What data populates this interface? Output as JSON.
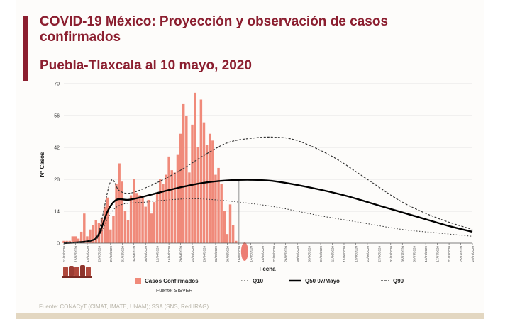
{
  "header": {
    "title": "COVID-19 México: Proyección y observación de casos confirmados",
    "subtitle": "Puebla-Tlaxcala al 10 mayo, 2020"
  },
  "footer": {
    "source": "Fuente: CONACyT (CIMAT, IMATE, UNAM); SSA (SNS, Red IRAG)"
  },
  "colors": {
    "brand": "#8b1e2f",
    "bars": "#f08a7a",
    "today_marker": "#e9675c",
    "q50_line": "#000000",
    "quantile_lines": "#333333",
    "grid": "#dddddd"
  },
  "icons": {
    "emblem": "institutional-emblem-icon"
  },
  "chart_data": {
    "type": "bar",
    "title": "",
    "xlabel": "Fecha",
    "ylabel": "Nº Casos",
    "ylim": [
      0,
      70
    ],
    "yticks": [
      0,
      14,
      28,
      42,
      56,
      70
    ],
    "grid": true,
    "legend_position": "bottom",
    "source_note": "Fuente: SISVER",
    "x_tick_labels": [
      "11/03/2020",
      "15/03/2020",
      "19/03/2020",
      "23/03/2020",
      "27/03/2020",
      "31/03/2020",
      "04/04/2020",
      "08/04/2020",
      "12/04/2020",
      "16/04/2020",
      "20/04/2020",
      "24/04/2020",
      "28/04/2020",
      "02/05/2020",
      "06/05/2020",
      "10/05/2020",
      "14/05/2020",
      "18/05/2020",
      "22/05/2020",
      "26/05/2020",
      "30/05/2020",
      "03/06/2020",
      "07/06/2020",
      "11/06/2020",
      "15/06/2020",
      "19/06/2020",
      "23/06/2020",
      "27/06/2020",
      "01/07/2020",
      "05/07/2020",
      "09/07/2020",
      "13/07/2020",
      "17/07/2020",
      "21/07/2020",
      "25/07/2020",
      "29/07/2020"
    ],
    "bars": {
      "name": "Casos Confirmados",
      "start_date": "11/03/2020",
      "values": [
        1,
        1,
        1,
        3,
        3,
        2,
        5,
        13,
        3,
        6,
        8,
        10,
        9,
        11,
        16,
        20,
        6,
        12,
        26,
        35,
        27,
        14,
        10,
        21,
        28,
        22,
        21,
        20,
        16,
        19,
        13,
        18,
        22,
        28,
        26,
        30,
        38,
        32,
        31,
        39,
        48,
        61,
        56,
        31,
        52,
        66,
        42,
        63,
        53,
        43,
        48,
        45,
        30,
        33,
        26,
        14,
        4,
        17,
        8,
        1
      ]
    },
    "today_marker": "10/05/2020",
    "series": [
      {
        "name": "Q10",
        "style": "dotted",
        "x": [
          "11/03/2020",
          "20/03/2020",
          "23/03/2020",
          "27/03/2020",
          "31/03/2020",
          "08/04/2020",
          "16/04/2020",
          "24/04/2020",
          "02/05/2020",
          "10/05/2020",
          "22/05/2020",
          "07/06/2020",
          "21/06/2020",
          "05/07/2020",
          "17/07/2020",
          "29/07/2020"
        ],
        "y": [
          0,
          1,
          3,
          13,
          17,
          18,
          19,
          19.5,
          19,
          18,
          16,
          12,
          9,
          6,
          4.5,
          3
        ]
      },
      {
        "name": "Q50 07/Mayo",
        "style": "solid",
        "x": [
          "11/03/2020",
          "20/03/2020",
          "23/03/2020",
          "26/03/2020",
          "29/03/2020",
          "02/04/2020",
          "06/04/2020",
          "12/04/2020",
          "20/04/2020",
          "28/04/2020",
          "06/05/2020",
          "14/05/2020",
          "22/05/2020",
          "03/06/2020",
          "15/06/2020",
          "27/06/2020",
          "09/07/2020",
          "21/07/2020",
          "29/07/2020"
        ],
        "y": [
          0,
          1,
          4,
          14,
          19,
          19,
          20,
          22,
          24.5,
          26.5,
          27.5,
          27.8,
          27.2,
          24.5,
          21,
          16.5,
          12,
          7.5,
          5
        ]
      },
      {
        "name": "Q90",
        "style": "dashed",
        "x": [
          "11/03/2020",
          "20/03/2020",
          "23/03/2020",
          "27/03/2020",
          "30/03/2020",
          "03/04/2020",
          "11/04/2020",
          "20/04/2020",
          "28/04/2020",
          "06/05/2020",
          "14/05/2020",
          "22/05/2020",
          "30/05/2020",
          "11/06/2020",
          "23/06/2020",
          "05/07/2020",
          "17/07/2020",
          "29/07/2020"
        ],
        "y": [
          0,
          1,
          5,
          27,
          23,
          22,
          26,
          32,
          38.5,
          44,
          46,
          46.5,
          45,
          38,
          28,
          18,
          11,
          6
        ]
      }
    ]
  }
}
